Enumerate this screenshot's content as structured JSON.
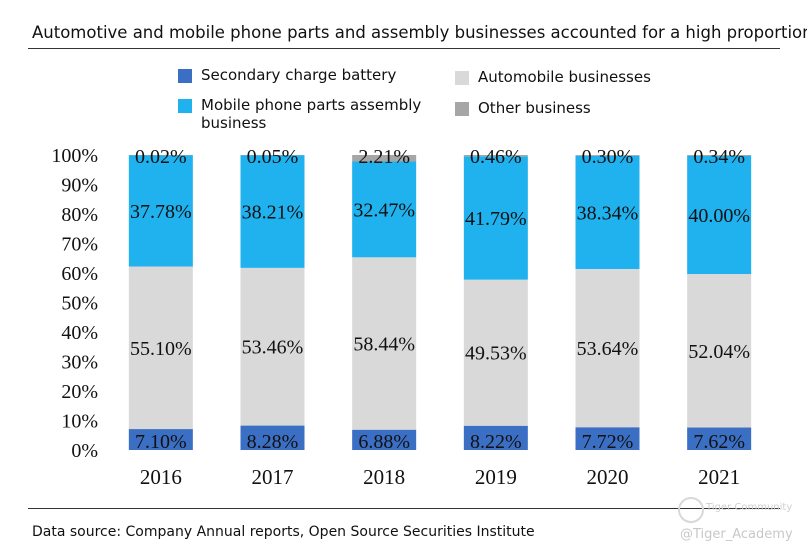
{
  "title": "Automotive and mobile phone parts and assembly businesses accounted for a high proportion",
  "source": "Data source: Company Annual reports, Open Source Securities Institute",
  "watermark": {
    "handle": "@Tiger_Academy",
    "community": "Tiger Community"
  },
  "colors": {
    "battery": "#3b6fc4",
    "mobile": "#1fb2ef",
    "automobile": "#d9d9d9",
    "other": "#a6a6a6"
  },
  "legend": [
    {
      "label": "Secondary charge battery",
      "color": "#3b6fc4"
    },
    {
      "label": "Automobile businesses",
      "color": "#d9d9d9"
    },
    {
      "label": "Mobile phone parts assembly business",
      "color": "#1fb2ef"
    },
    {
      "label": "Other business",
      "color": "#a6a6a6"
    }
  ],
  "chart_data": {
    "type": "bar",
    "stacked": true,
    "categories": [
      "2016",
      "2017",
      "2018",
      "2019",
      "2020",
      "2021"
    ],
    "ylim": [
      0,
      100
    ],
    "yticks": [
      "0%",
      "10%",
      "20%",
      "30%",
      "40%",
      "50%",
      "60%",
      "70%",
      "80%",
      "90%",
      "100%"
    ],
    "series": [
      {
        "name": "Secondary charge battery",
        "values": [
          7.1,
          8.28,
          6.88,
          8.22,
          7.72,
          7.62
        ],
        "labels": [
          "7.10%",
          "8.28%",
          "6.88%",
          "8.22%",
          "7.72%",
          "7.62%"
        ]
      },
      {
        "name": "Automobile businesses",
        "values": [
          55.1,
          53.46,
          58.44,
          49.53,
          53.64,
          52.04
        ],
        "labels": [
          "55.10%",
          "53.46%",
          "58.44%",
          "49.53%",
          "53.64%",
          "52.04%"
        ]
      },
      {
        "name": "Mobile phone parts assembly business",
        "values": [
          37.78,
          38.21,
          32.47,
          41.79,
          38.34,
          40.0
        ],
        "labels": [
          "37.78%",
          "38.21%",
          "32.47%",
          "41.79%",
          "38.34%",
          "40.00%"
        ]
      },
      {
        "name": "Other business",
        "values": [
          0.02,
          0.05,
          2.21,
          0.46,
          0.3,
          0.34
        ],
        "labels": [
          "0.02%",
          "0.05%",
          "2.21%",
          "0.46%",
          "0.30%",
          "0.34%"
        ]
      }
    ],
    "legend_position": "top",
    "grid": false
  }
}
